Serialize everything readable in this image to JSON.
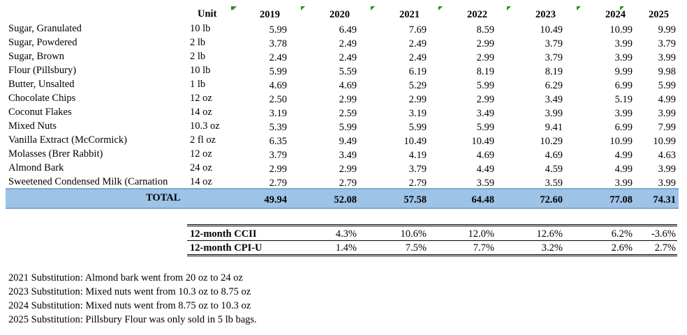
{
  "table": {
    "header": [
      "Unit",
      "2019",
      "2020",
      "2021",
      "2022",
      "2023",
      "2024",
      "2025"
    ],
    "rows": [
      [
        "Sugar, Granulated",
        "10 lb",
        "5.99",
        "6.49",
        "7.69",
        "8.59",
        "10.49",
        "10.99",
        "9.99"
      ],
      [
        "Sugar, Powdered",
        "2 lb",
        "3.78",
        "2.49",
        "2.49",
        "2.99",
        "3.79",
        "3.99",
        "3.79"
      ],
      [
        "Sugar, Brown",
        "2 lb",
        "2.49",
        "2.49",
        "2.49",
        "2.99",
        "3.79",
        "3.99",
        "3.99"
      ],
      [
        "Flour (Pillsbury)",
        "10 lb",
        "5.99",
        "5.59",
        "6.19",
        "8.19",
        "8.19",
        "9.99",
        "9.98"
      ],
      [
        "Butter, Unsalted",
        "1 lb",
        "4.69",
        "4.69",
        "5.29",
        "5.99",
        "6.29",
        "6.99",
        "5.99"
      ],
      [
        "Chocolate Chips",
        "12 oz",
        "2.50",
        "2.99",
        "2.99",
        "2.99",
        "3.49",
        "5.19",
        "4.99"
      ],
      [
        "Coconut Flakes",
        "14 oz",
        "3.19",
        "2.59",
        "3.19",
        "3.49",
        "3.99",
        "3.99",
        "3.99"
      ],
      [
        "Mixed Nuts",
        "10.3 oz",
        "5.39",
        "5.99",
        "5.99",
        "5.99",
        "9.41",
        "6.99",
        "7.99"
      ],
      [
        "Vanilla Extract (McCormick)",
        "2 fl oz",
        "6.35",
        "9.49",
        "10.49",
        "10.49",
        "10.29",
        "10.99",
        "10.99"
      ],
      [
        "Molasses (Brer Rabbit)",
        "12 oz",
        "3.79",
        "3.49",
        "4.19",
        "4.69",
        "4.69",
        "4.99",
        "4.63"
      ],
      [
        "Almond Bark",
        "24 oz",
        "2.99",
        "2.99",
        "3.79",
        "4.49",
        "4.59",
        "4.99",
        "3.99"
      ],
      [
        "Sweetened Condensed Milk (Carnation",
        "14 oz",
        "2.79",
        "2.79",
        "2.79",
        "3.59",
        "3.59",
        "3.99",
        "3.99"
      ]
    ],
    "total": [
      "TOTAL",
      "49.94",
      "52.08",
      "57.58",
      "64.48",
      "72.60",
      "77.08",
      "74.31"
    ]
  },
  "indices": {
    "rows": [
      [
        "12-month CCII",
        "4.3%",
        "10.6%",
        "12.0%",
        "12.6%",
        "6.2%",
        "-3.6%"
      ],
      [
        "12-month CPI-U",
        "1.4%",
        "7.5%",
        "7.7%",
        "3.2%",
        "2.6%",
        "2.7%"
      ]
    ]
  },
  "notes": [
    "2021 Substitution: Almond bark went from 20 oz to 24 oz",
    "2023 Substitution: Mixed nuts went from 10.3 oz to 8.75 oz",
    "2024 Substitution: Mixed nuts went from 8.75 oz to 10.3 oz",
    "2025 Substitution: Pillsbury Flour was only sold in 5 lb bags."
  ]
}
